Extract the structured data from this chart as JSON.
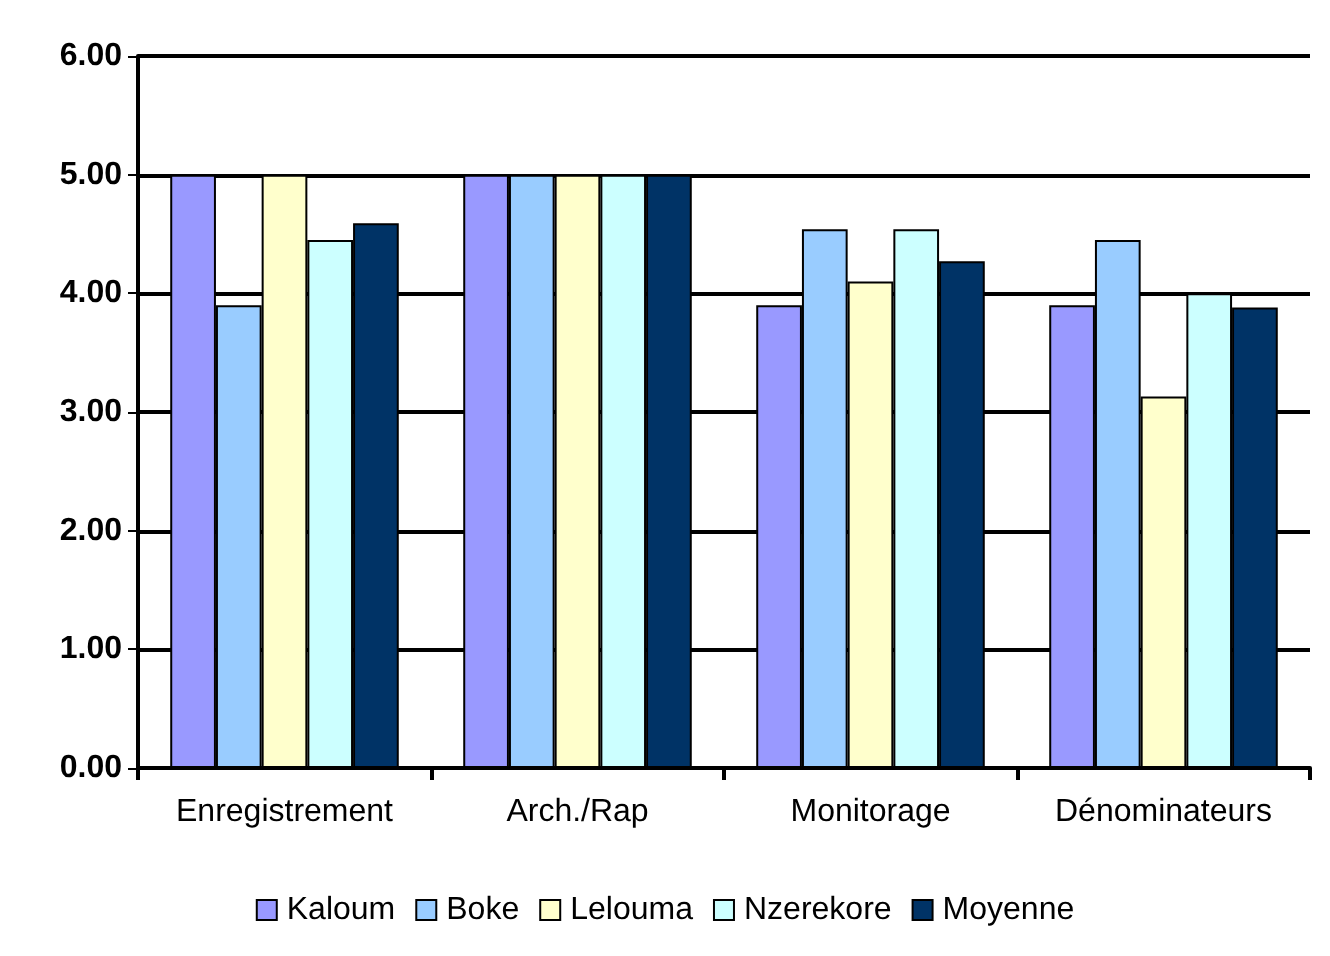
{
  "chart_data": {
    "type": "bar",
    "categories": [
      "Enregistrement",
      "Arch./Rap",
      "Monitorage",
      "Dénominateurs"
    ],
    "series": [
      {
        "name": "Kaloum",
        "color": "#9999ff",
        "values": [
          5.0,
          5.0,
          3.9,
          3.9
        ]
      },
      {
        "name": "Boke",
        "color": "#99ccff",
        "values": [
          3.9,
          5.0,
          4.54,
          4.45
        ]
      },
      {
        "name": "Lelouma",
        "color": "#ffffcc",
        "values": [
          5.0,
          5.0,
          4.1,
          3.13
        ]
      },
      {
        "name": "Nzerekore",
        "color": "#ccffff",
        "values": [
          4.45,
          5.0,
          4.54,
          4.0
        ]
      },
      {
        "name": "Moyenne",
        "color": "#003366",
        "values": [
          4.59,
          5.0,
          4.27,
          3.88
        ]
      }
    ],
    "ylim": [
      0,
      6
    ],
    "yticks": [
      {
        "value": 0,
        "label": "0.00"
      },
      {
        "value": 1,
        "label": "1.00"
      },
      {
        "value": 2,
        "label": "2.00"
      },
      {
        "value": 3,
        "label": "3.00"
      },
      {
        "value": 4,
        "label": "4.00"
      },
      {
        "value": 5,
        "label": "5.00"
      },
      {
        "value": 6,
        "label": "6.00"
      }
    ],
    "grid": "y",
    "legend": "bottom"
  }
}
